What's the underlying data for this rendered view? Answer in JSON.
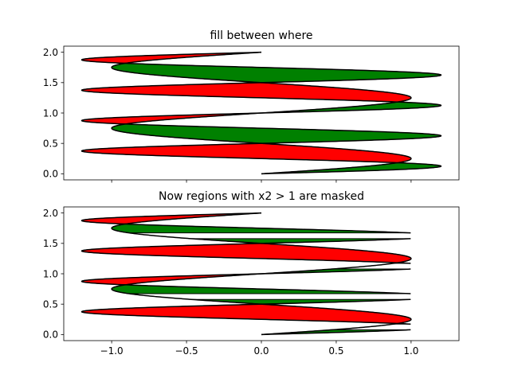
{
  "chart_data": [
    {
      "type": "area",
      "title": "fill between where",
      "xlabel": "",
      "ylabel": "",
      "xlim": [
        -1.32,
        1.32
      ],
      "ylim": [
        -0.1,
        2.1
      ],
      "x_ticks": [
        -1.0,
        -0.5,
        0.0,
        0.5,
        1.0
      ],
      "x_tick_labels_visible": false,
      "y_ticks": [
        0.0,
        0.5,
        1.0,
        1.5,
        2.0
      ],
      "y_tick_labels": [
        "0.0",
        "0.5",
        "1.0",
        "1.5",
        "2.0"
      ],
      "y_range": [
        0.0,
        2.0
      ],
      "curves": {
        "x1": "sin(2*pi*y)",
        "x2": "1.2*sin(4*pi*y)",
        "x2_masked_above": null
      },
      "fills": [
        {
          "condition": "x2 > x1",
          "color": "#008000"
        },
        {
          "condition": "x2 < x1",
          "color": "#ff0000"
        }
      ],
      "line_color": "#000000",
      "grid": false
    },
    {
      "type": "area",
      "title": "Now regions with x2 > 1 are masked",
      "xlabel": "",
      "ylabel": "",
      "xlim": [
        -1.32,
        1.32
      ],
      "ylim": [
        -0.1,
        2.1
      ],
      "x_ticks": [
        -1.0,
        -0.5,
        0.0,
        0.5,
        1.0
      ],
      "x_tick_labels": [
        "−1.0",
        "−0.5",
        "0.0",
        "0.5",
        "1.0"
      ],
      "x_tick_labels_visible": true,
      "y_ticks": [
        0.0,
        0.5,
        1.0,
        1.5,
        2.0
      ],
      "y_tick_labels": [
        "0.0",
        "0.5",
        "1.0",
        "1.5",
        "2.0"
      ],
      "y_range": [
        0.0,
        2.0
      ],
      "curves": {
        "x1": "sin(2*pi*y)",
        "x2": "1.2*sin(4*pi*y)",
        "x2_masked_above": 1.0
      },
      "fills": [
        {
          "condition": "x2 > x1",
          "color": "#008000"
        },
        {
          "condition": "x2 < x1",
          "color": "#ff0000"
        }
      ],
      "line_color": "#000000",
      "grid": false
    }
  ]
}
